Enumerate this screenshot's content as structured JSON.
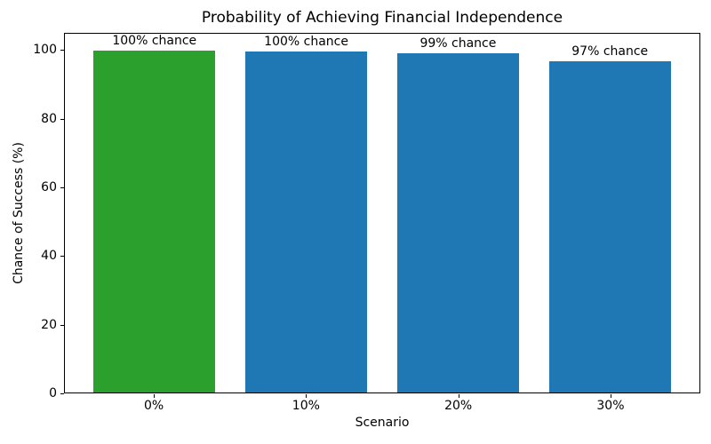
{
  "chart_data": {
    "type": "bar",
    "title": "Probability of Achieving Financial Independence",
    "xlabel": "Scenario",
    "ylabel": "Chance of Success (%)",
    "categories": [
      "0%",
      "10%",
      "20%",
      "30%"
    ],
    "values": [
      100,
      99.7,
      99.2,
      96.9
    ],
    "bar_labels": [
      "100% chance",
      "100% chance",
      "99% chance",
      "97% chance"
    ],
    "bar_colors": [
      "#2ca02c",
      "#1f77b4",
      "#1f77b4",
      "#1f77b4"
    ],
    "yticks": [
      0,
      20,
      40,
      60,
      80,
      100
    ],
    "ylim": [
      0,
      105
    ],
    "xlim": [
      -0.59,
      3.59
    ],
    "bar_width": 0.8,
    "grid": false,
    "legend_position": "none",
    "background_color": "#ffffff",
    "spine_color": "#000000",
    "text_color": "#000000"
  }
}
